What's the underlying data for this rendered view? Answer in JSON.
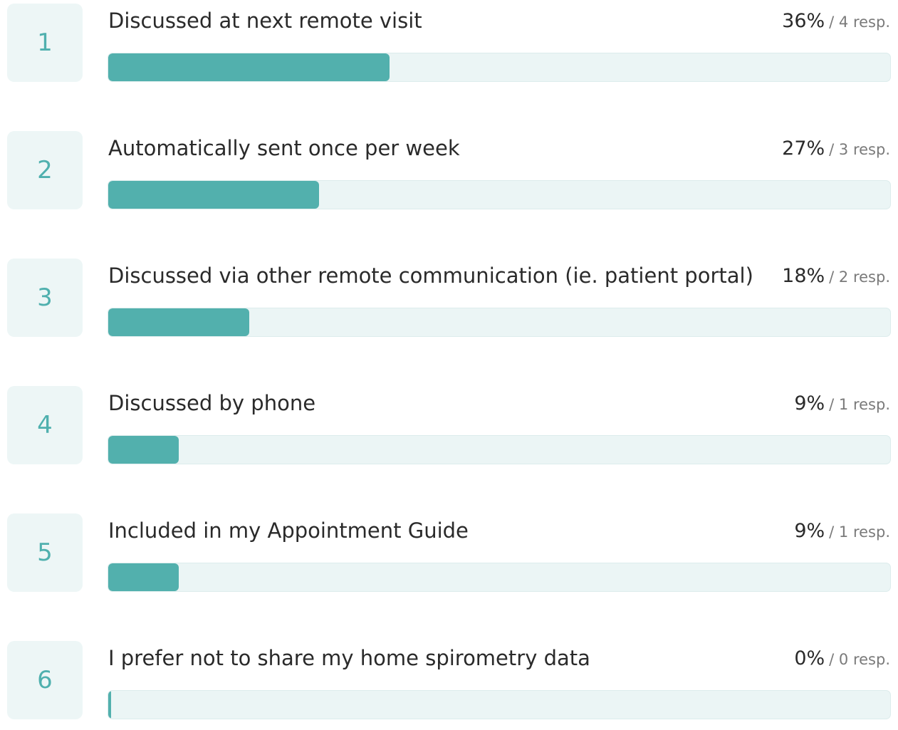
{
  "items": [
    {
      "rank": "1",
      "label": "Discussed at next remote visit",
      "percent": 36,
      "percent_label": "36%",
      "responses_label": "/ 4 resp."
    },
    {
      "rank": "2",
      "label": "Automatically sent once per week",
      "percent": 27,
      "percent_label": "27%",
      "responses_label": "/ 3 resp."
    },
    {
      "rank": "3",
      "label": "Discussed via other remote communication (ie. patient portal)",
      "percent": 18,
      "percent_label": "18%",
      "responses_label": "/ 2 resp."
    },
    {
      "rank": "4",
      "label": "Discussed by phone",
      "percent": 9,
      "percent_label": "9%",
      "responses_label": "/ 1 resp."
    },
    {
      "rank": "5",
      "label": "Included in my Appointment Guide",
      "percent": 9,
      "percent_label": "9%",
      "responses_label": "/ 1 resp."
    },
    {
      "rank": "6",
      "label": "I prefer not to share my home spirometry data",
      "percent": 0,
      "percent_label": "0%",
      "responses_label": "/ 0 resp."
    }
  ]
}
